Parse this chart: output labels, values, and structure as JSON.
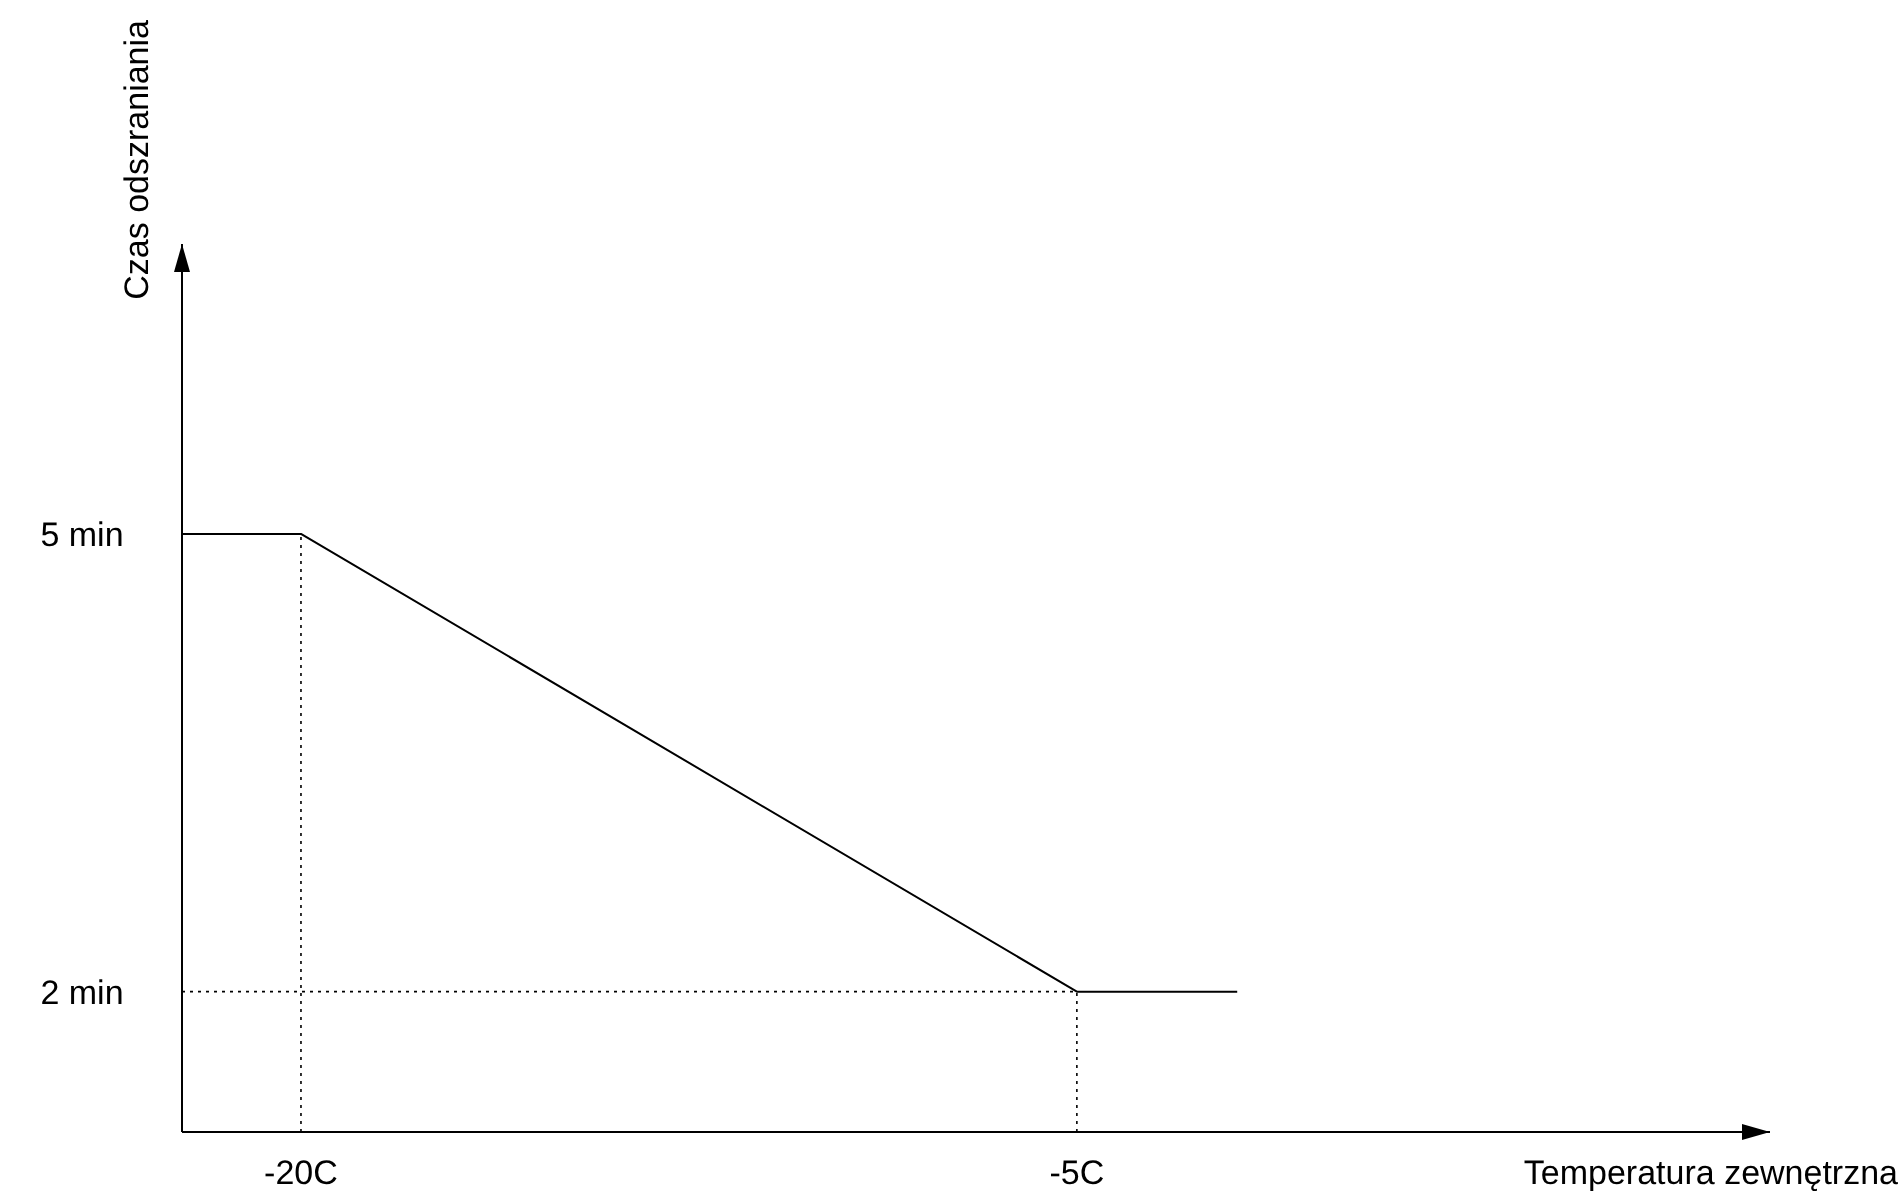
{
  "chart_data": {
    "type": "line",
    "xlabel": "Temperatura zewnętrzna",
    "ylabel": "Czas odszraniania",
    "x": [
      -22.3,
      -20,
      -5,
      -1.9
    ],
    "series": [
      {
        "color": "#000000",
        "values": [
          5,
          5,
          2,
          2
        ]
      }
    ],
    "xlim": [
      -22.3,
      8.4
    ],
    "ylim": [
      1.08,
      6.9
    ],
    "xticks": [
      {
        "value": -20,
        "label": "-20C"
      },
      {
        "value": -5,
        "label": "-5C"
      }
    ],
    "yticks": [
      {
        "value": 5,
        "label": "5 min"
      },
      {
        "value": 2,
        "label": "2 min"
      }
    ],
    "ref_lines": [
      {
        "axis": "x",
        "value": -20,
        "label": null,
        "line_style": "dotted"
      },
      {
        "axis": "x",
        "value": -5,
        "label": null,
        "line_style": "dotted"
      },
      {
        "axis": "y",
        "value": 2,
        "label": null,
        "line_style": "dotted"
      }
    ],
    "grid": false,
    "marker": "none",
    "line_style": "solid"
  }
}
